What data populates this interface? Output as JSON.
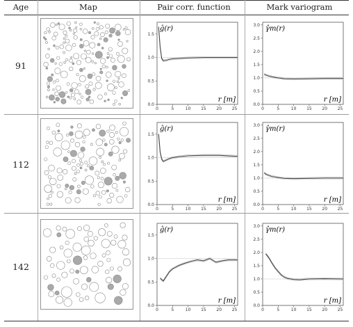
{
  "table": {
    "headers": {
      "age": "Age",
      "map": "Map",
      "pcf": "Pair corr. function",
      "mv": "Mark variogram"
    },
    "rows": [
      {
        "age": "91"
      },
      {
        "age": "112"
      },
      {
        "age": "142"
      }
    ]
  },
  "plot_labels": {
    "pcf_ylabel": "ĝ(r)",
    "mv_ylabel": "γ̂m(r)",
    "xlabel": "r [m]"
  },
  "colors": {
    "curve": "#444444",
    "env": "#c8c8c8",
    "ref": "#dddddd",
    "circle_stroke": "#8a8a8a",
    "circle_fill_dark": "#a9a9a9"
  },
  "chart_data": [
    {
      "type": "line",
      "row_age": "91",
      "panel": "pair correlation function",
      "ylabel": "ĝ(r)",
      "xlabel": "r [m]",
      "xlim": [
        0,
        26
      ],
      "ylim": [
        0,
        1.75
      ],
      "xticks": [
        0,
        5,
        10,
        15,
        20,
        25
      ],
      "yticks": [
        0.0,
        0.5,
        1.0,
        1.5
      ],
      "reference_y": 1.0,
      "series": [
        {
          "x": [
            0.5,
            1.0,
            1.5,
            2.0,
            3.0,
            4.0,
            5.0,
            7.0,
            10.0,
            15.0,
            20.0,
            25.0,
            26.0
          ],
          "y": [
            1.65,
            1.22,
            0.98,
            0.93,
            0.94,
            0.96,
            0.97,
            0.98,
            0.99,
            1.0,
            1.0,
            1.0,
            1.0
          ]
        }
      ]
    },
    {
      "type": "line",
      "row_age": "91",
      "panel": "mark variogram",
      "ylabel": "γ̂m(r)",
      "xlabel": "r [m]",
      "xlim": [
        0,
        26
      ],
      "ylim": [
        0,
        3.1
      ],
      "xticks": [
        0,
        5,
        10,
        15,
        20,
        25
      ],
      "yticks": [
        0.0,
        0.5,
        1.0,
        1.5,
        2.0,
        2.5,
        3.0
      ],
      "reference_y": 1.0,
      "series": [
        {
          "x": [
            0.5,
            1.0,
            2.0,
            3.0,
            5.0,
            7.0,
            10.0,
            15.0,
            20.0,
            25.0,
            26.0
          ],
          "y": [
            1.14,
            1.11,
            1.07,
            1.04,
            1.0,
            0.97,
            0.96,
            0.97,
            0.98,
            0.98,
            0.98
          ]
        }
      ]
    },
    {
      "type": "line",
      "row_age": "112",
      "panel": "pair correlation function",
      "ylabel": "ĝ(r)",
      "xlabel": "r [m]",
      "xlim": [
        0,
        26
      ],
      "ylim": [
        0,
        1.75
      ],
      "xticks": [
        0,
        5,
        10,
        15,
        20,
        25
      ],
      "yticks": [
        0.0,
        0.5,
        1.0,
        1.5
      ],
      "reference_y": 1.0,
      "series": [
        {
          "x": [
            0.5,
            1.0,
            1.5,
            2.0,
            3.0,
            4.0,
            5.0,
            7.0,
            10.0,
            15.0,
            20.0,
            25.0,
            26.0
          ],
          "y": [
            1.5,
            1.12,
            0.97,
            0.92,
            0.95,
            0.98,
            1.0,
            1.02,
            1.04,
            1.05,
            1.05,
            1.03,
            1.03
          ]
        }
      ]
    },
    {
      "type": "line",
      "row_age": "112",
      "panel": "mark variogram",
      "ylabel": "γ̂m(r)",
      "xlabel": "r [m]",
      "xlim": [
        0,
        26
      ],
      "ylim": [
        0,
        3.1
      ],
      "xticks": [
        0,
        5,
        10,
        15,
        20,
        25
      ],
      "yticks": [
        0.0,
        0.5,
        1.0,
        1.5,
        2.0,
        2.5,
        3.0
      ],
      "reference_y": 1.0,
      "series": [
        {
          "x": [
            0.5,
            1.0,
            2.0,
            3.0,
            5.0,
            7.0,
            10.0,
            15.0,
            20.0,
            25.0,
            26.0
          ],
          "y": [
            1.2,
            1.15,
            1.1,
            1.06,
            1.02,
            0.99,
            0.98,
            0.99,
            1.0,
            1.0,
            1.0
          ]
        }
      ]
    },
    {
      "type": "line",
      "row_age": "142",
      "panel": "pair correlation function",
      "ylabel": "ĝ(r)",
      "xlabel": "r [m]",
      "xlim": [
        0,
        26
      ],
      "ylim": [
        0,
        1.75
      ],
      "xticks": [
        0,
        5,
        10,
        15,
        20,
        25
      ],
      "yticks": [
        0.0,
        0.5,
        1.0,
        1.5
      ],
      "reference_y": 1.0,
      "series": [
        {
          "x": [
            1.0,
            2.0,
            3.0,
            4.0,
            5.0,
            7.0,
            9.0,
            11.0,
            13.0,
            15.0,
            17.0,
            19.0,
            21.0,
            23.0,
            25.0,
            26.0
          ],
          "y": [
            0.58,
            0.52,
            0.62,
            0.72,
            0.78,
            0.85,
            0.9,
            0.94,
            0.97,
            0.95,
            1.0,
            0.92,
            0.95,
            0.97,
            0.97,
            0.97
          ]
        }
      ]
    },
    {
      "type": "line",
      "row_age": "142",
      "panel": "mark variogram",
      "ylabel": "γ̂m(r)",
      "xlabel": "r [m]",
      "xlim": [
        0,
        26
      ],
      "ylim": [
        0,
        3.1
      ],
      "xticks": [
        0,
        5,
        10,
        15,
        20,
        25
      ],
      "yticks": [
        0.0,
        0.5,
        1.0,
        1.5,
        2.0,
        2.5,
        3.0
      ],
      "reference_y": 1.0,
      "series": [
        {
          "x": [
            1.0,
            2.0,
            3.0,
            4.0,
            5.0,
            6.0,
            7.0,
            8.0,
            10.0,
            12.0,
            15.0,
            20.0,
            25.0,
            26.0
          ],
          "y": [
            1.95,
            1.8,
            1.6,
            1.42,
            1.28,
            1.15,
            1.07,
            1.02,
            0.98,
            0.97,
            1.0,
            1.01,
            1.0,
            1.0
          ]
        }
      ]
    }
  ]
}
